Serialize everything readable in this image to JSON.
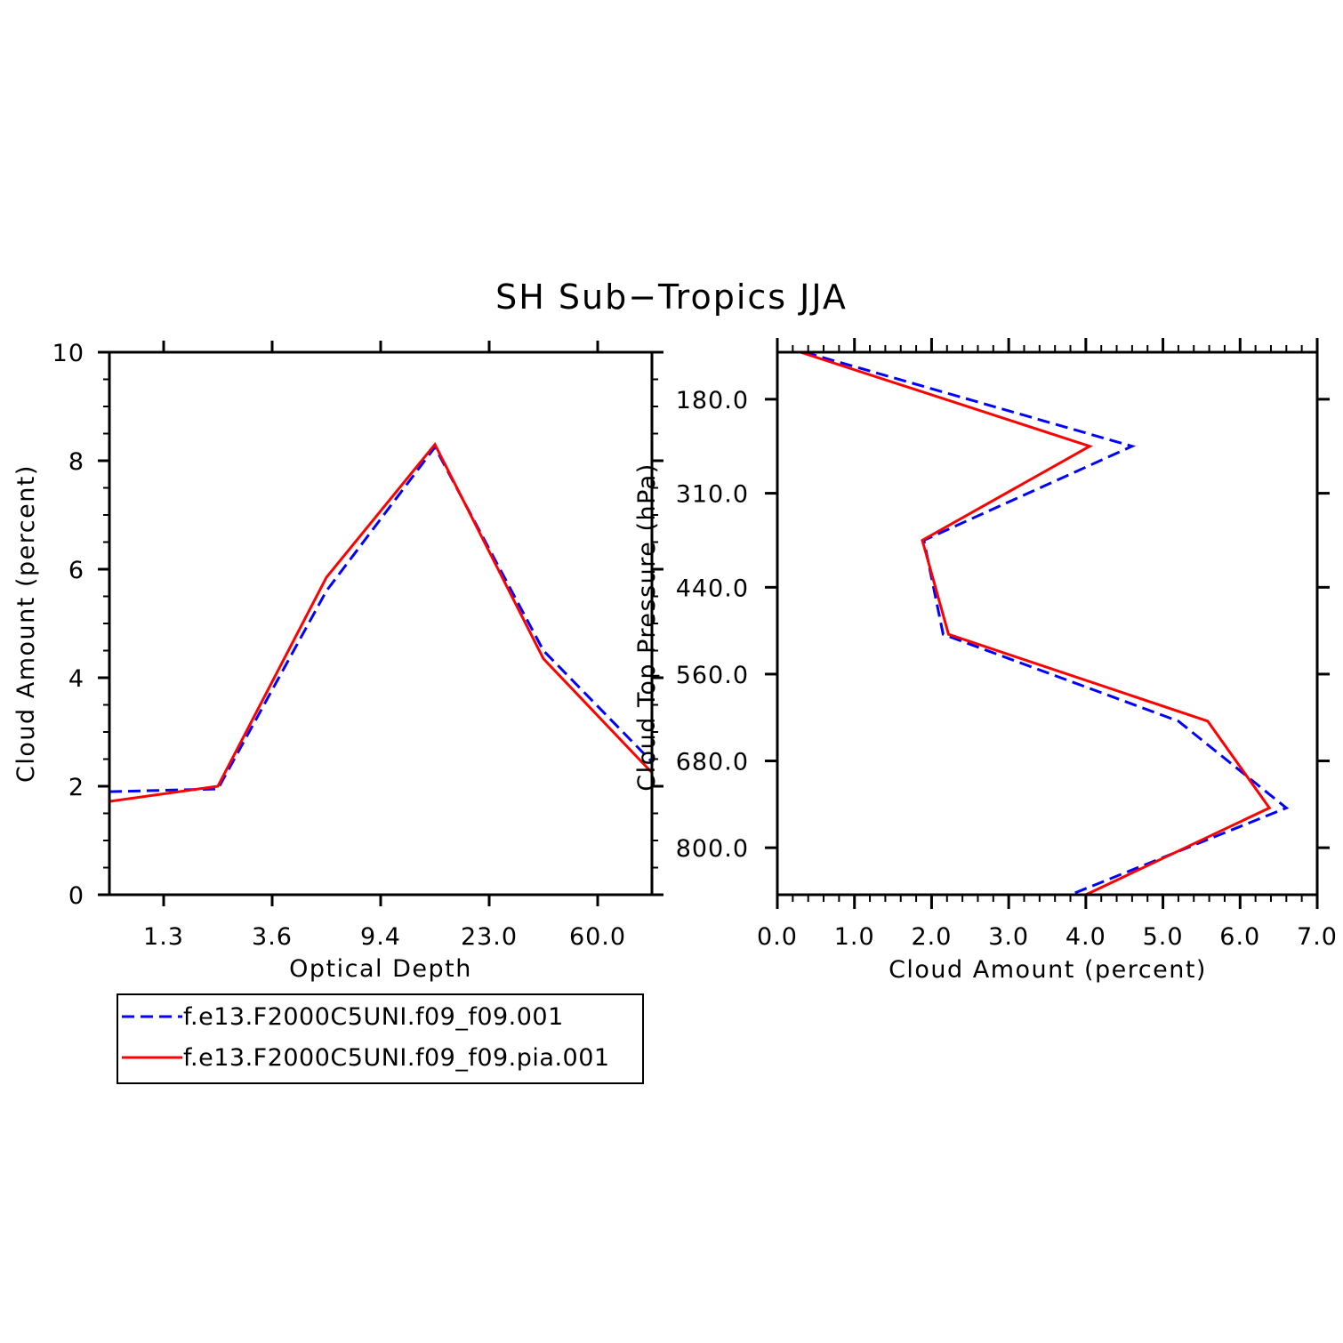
{
  "title": "SH Sub−Tropics JJA",
  "colors": {
    "series1": "#0000ff",
    "series2": "#ff0000",
    "axis": "#000000",
    "background": "#ffffff"
  },
  "chart_data": [
    {
      "type": "line",
      "xlabel": "Optical Depth",
      "ylabel": "Cloud Amount (percent)",
      "x_tick_labels": [
        "1.3",
        "3.6",
        "9.4",
        "23.0",
        "60.0"
      ],
      "y_tick_labels": [
        "0",
        "2",
        "4",
        "6",
        "8",
        "10"
      ],
      "ylim": [
        0,
        10
      ],
      "x_positions": [
        0,
        1,
        2,
        3,
        4,
        5
      ],
      "series": [
        {
          "name": "f.e13.F2000C5UNI.f09_f09.001",
          "style": "dashed",
          "values": [
            1.9,
            1.95,
            5.6,
            8.25,
            4.5,
            2.45
          ]
        },
        {
          "name": "f.e13.F2000C5UNI.f09_f09.pia.001",
          "style": "solid",
          "values": [
            1.72,
            2.0,
            5.85,
            8.3,
            4.35,
            2.25
          ]
        }
      ],
      "grid": false
    },
    {
      "type": "line",
      "xlabel": "Cloud Amount (percent)",
      "ylabel": "Cloud Top Pressure (hPa)",
      "x_tick_labels": [
        "0.0",
        "1.0",
        "2.0",
        "3.0",
        "4.0",
        "5.0",
        "6.0",
        "7.0"
      ],
      "xlim": [
        0,
        7
      ],
      "y_tick_labels": [
        "180.0",
        "310.0",
        "440.0",
        "560.0",
        "680.0",
        "800.0"
      ],
      "ylim": [
        115,
        865
      ],
      "series": [
        {
          "name": "f.e13.F2000C5UNI.f09_f09.001",
          "style": "dashed",
          "values": [
            0.35,
            4.6,
            1.9,
            2.15,
            5.2,
            6.6,
            3.8
          ],
          "pressure": [
            115,
            245,
            375,
            505,
            625,
            745,
            865
          ]
        },
        {
          "name": "f.e13.F2000C5UNI.f09_f09.pia.001",
          "style": "solid",
          "values": [
            0.3,
            4.05,
            1.88,
            2.22,
            5.58,
            6.38,
            4.0
          ],
          "pressure": [
            115,
            245,
            375,
            505,
            625,
            745,
            865
          ]
        }
      ],
      "grid": false
    }
  ],
  "legend": {
    "entries": [
      {
        "label": "f.e13.F2000C5UNI.f09_f09.001",
        "style": "dashed"
      },
      {
        "label": "f.e13.F2000C5UNI.f09_f09.pia.001",
        "style": "solid"
      }
    ]
  }
}
